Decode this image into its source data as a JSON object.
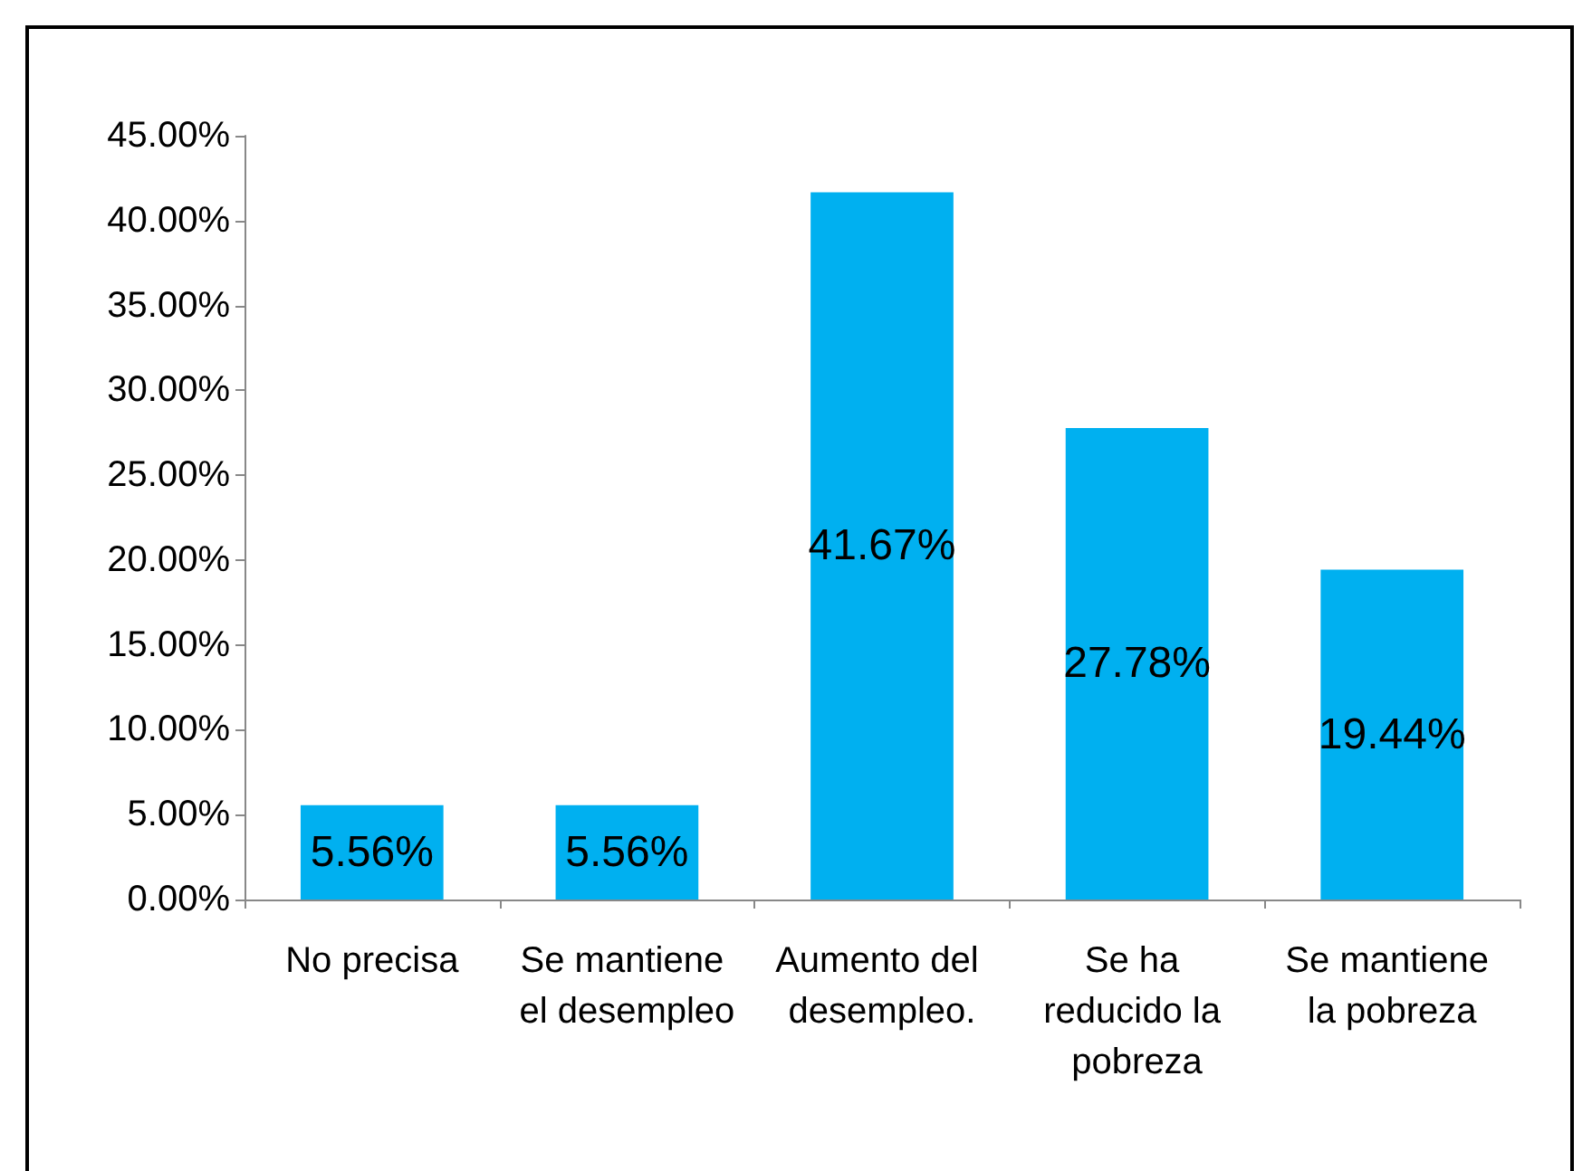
{
  "chart_data": {
    "type": "bar",
    "categories": [
      "No precisa",
      "Se mantiene el desempleo",
      "Aumento del desempleo.",
      "Se ha reducido la pobreza",
      "Se mantiene la pobreza"
    ],
    "values": [
      5.56,
      5.56,
      41.67,
      27.78,
      19.44
    ],
    "value_labels": [
      "5.56%",
      "5.56%",
      "41.67%",
      "27.78%",
      "19.44%"
    ],
    "color": "#00b0f0",
    "ylim": [
      0,
      45
    ],
    "yticks": [
      {
        "value": 0,
        "label": "0.00%"
      },
      {
        "value": 5,
        "label": "5.00%"
      },
      {
        "value": 10,
        "label": "10.00%"
      },
      {
        "value": 15,
        "label": "15.00%"
      },
      {
        "value": 20,
        "label": "20.00%"
      },
      {
        "value": 25,
        "label": "25.00%"
      },
      {
        "value": 30,
        "label": "30.00%"
      },
      {
        "value": 35,
        "label": "35.00%"
      },
      {
        "value": 40,
        "label": "40.00%"
      },
      {
        "value": 45,
        "label": "45.00%"
      }
    ],
    "grid": false
  }
}
